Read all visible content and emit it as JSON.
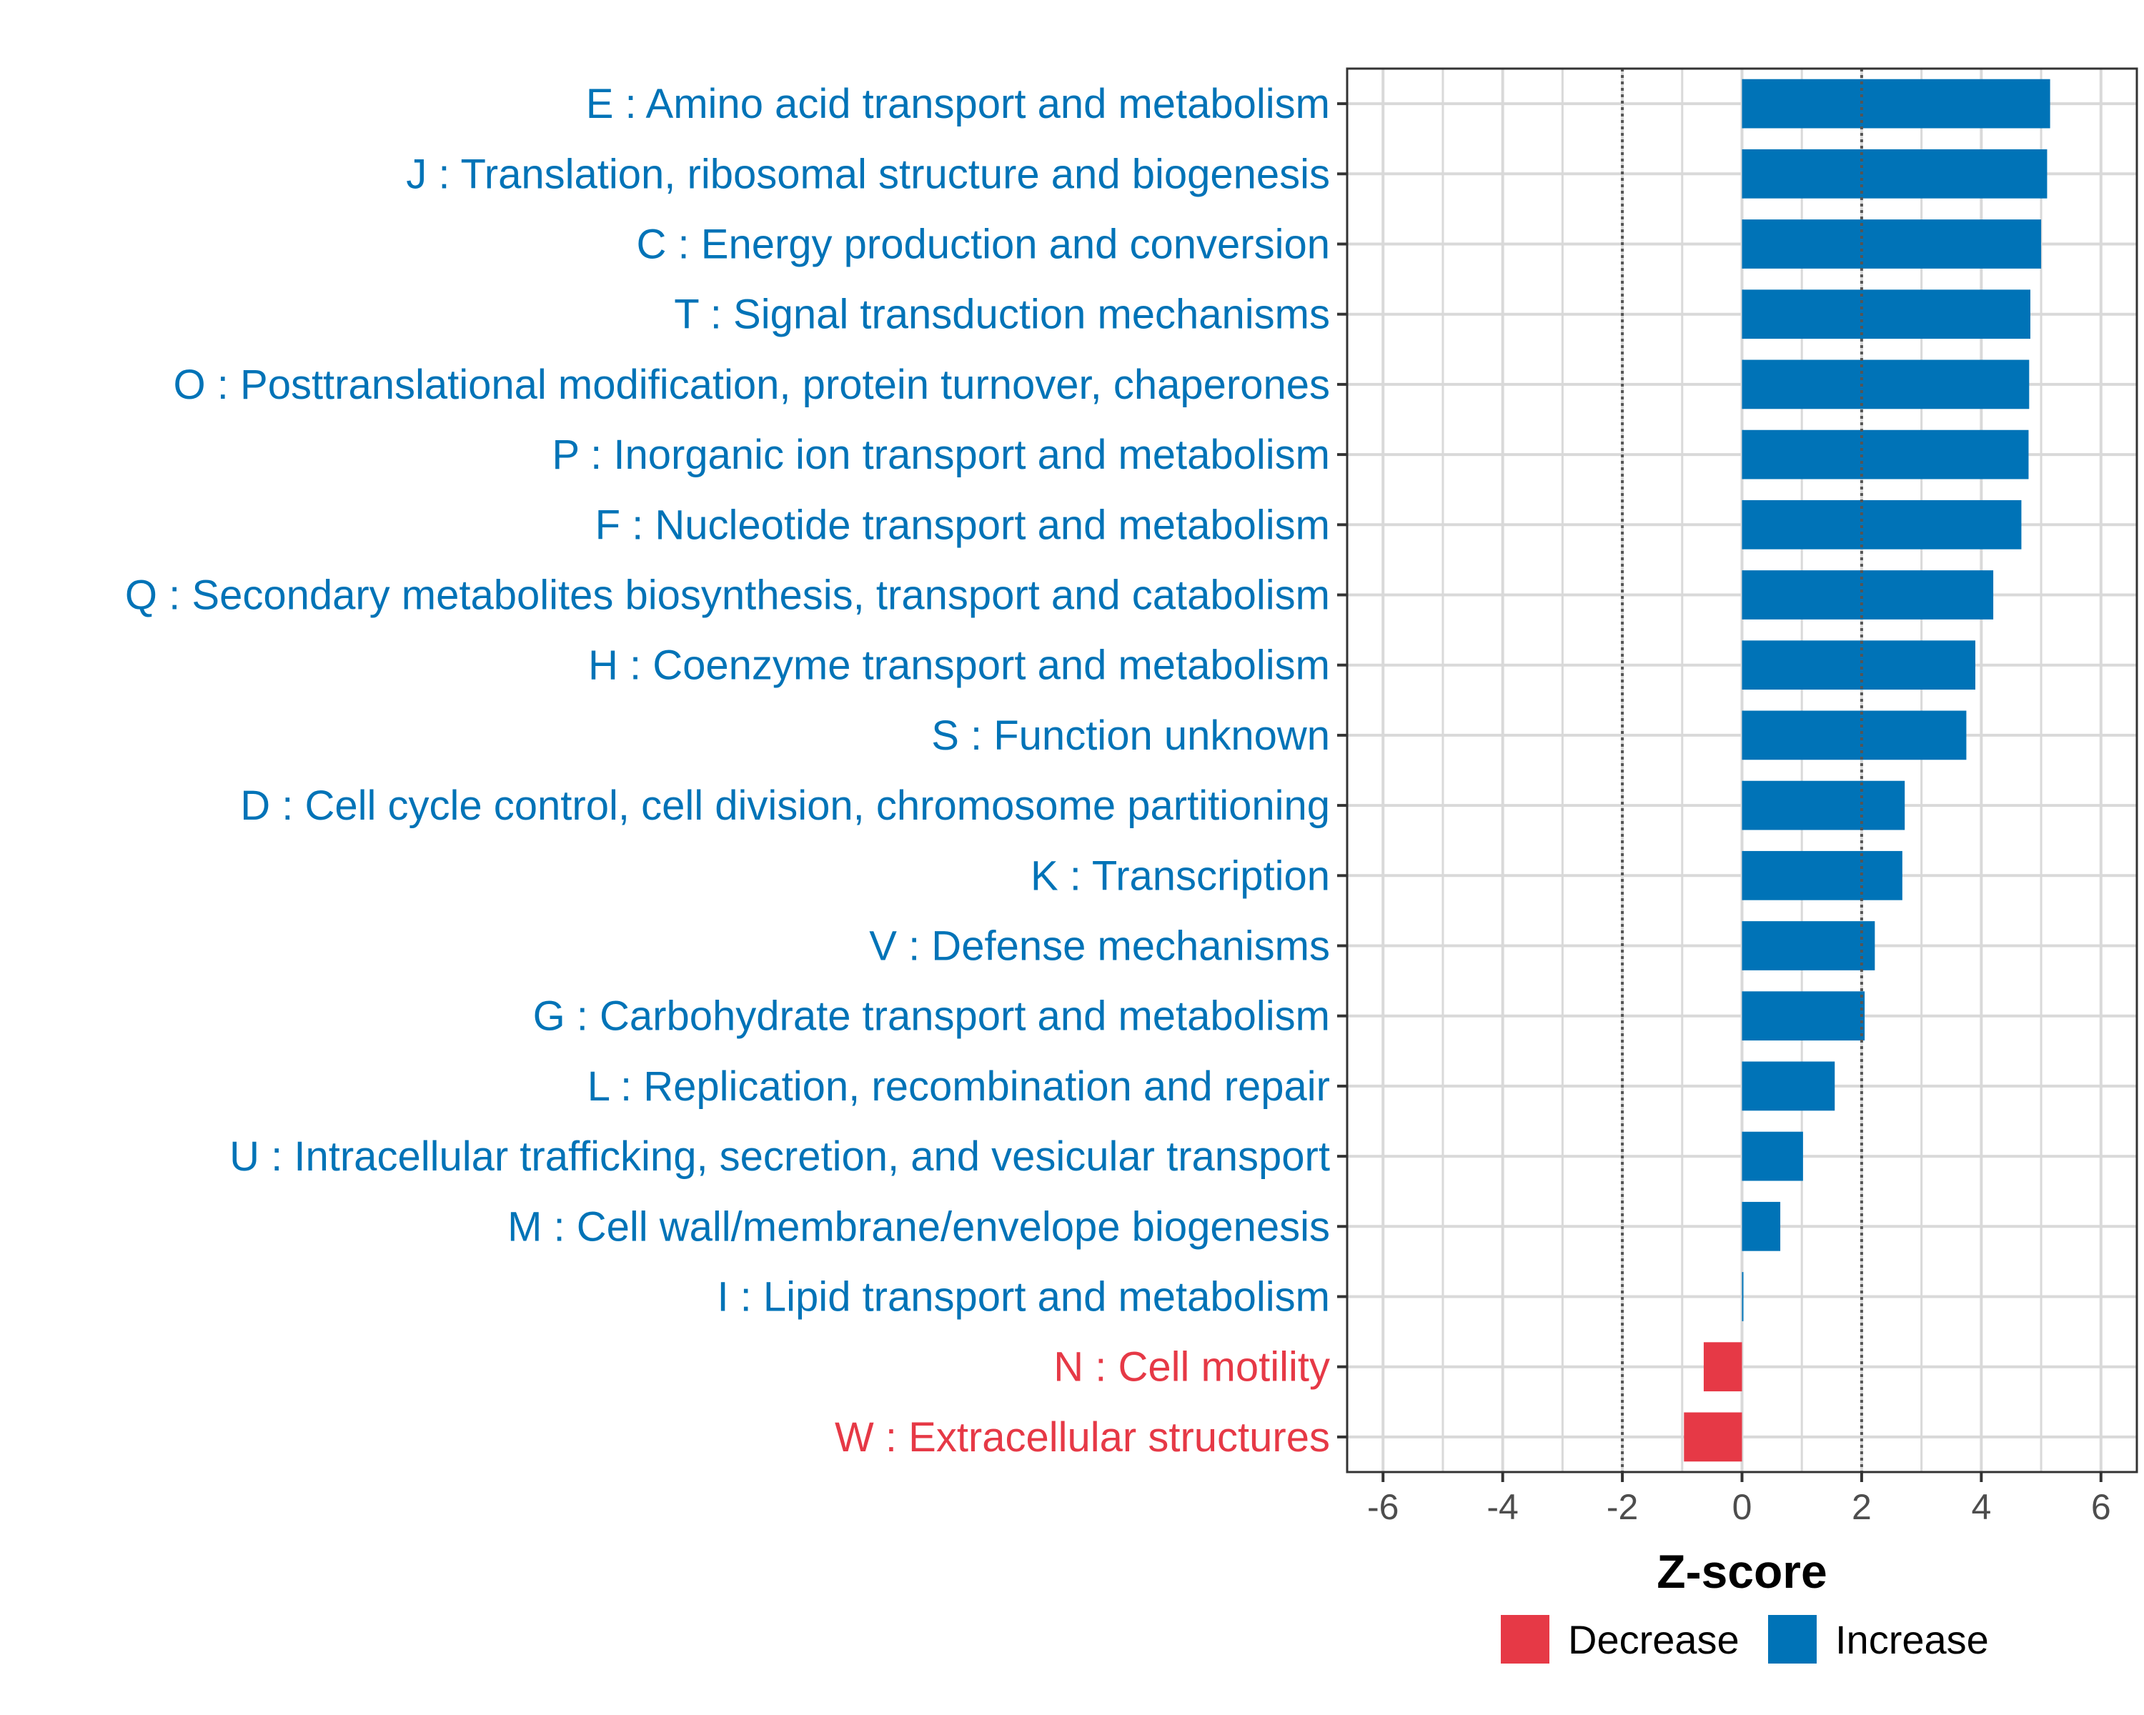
{
  "chart_data": {
    "type": "bar",
    "orientation": "horizontal",
    "title": "",
    "xlabel": "Z-score",
    "ylabel": "",
    "xlim": [
      -6.6,
      6.6
    ],
    "xticks": [
      -6,
      -4,
      -2,
      0,
      2,
      4,
      6
    ],
    "xtick_labels": [
      "-6",
      "-4",
      "-2",
      "0",
      "2",
      "4",
      "6"
    ],
    "reference_lines": [
      -2,
      2
    ],
    "grid": true,
    "categories": [
      "E : Amino acid transport and metabolism",
      "J : Translation, ribosomal structure and biogenesis",
      "C : Energy production and conversion",
      "T : Signal transduction mechanisms",
      "O : Posttranslational modification, protein turnover, chaperones",
      "P : Inorganic ion transport and metabolism",
      "F : Nucleotide transport and metabolism",
      "Q : Secondary metabolites biosynthesis, transport and catabolism",
      "H : Coenzyme transport and metabolism",
      "S : Function unknown",
      "D : Cell cycle control, cell division, chromosome partitioning",
      "K : Transcription",
      "V : Defense mechanisms",
      "G : Carbohydrate transport and metabolism",
      "L : Replication, recombination and repair",
      "U : Intracellular trafficking, secretion, and vesicular transport",
      "M : Cell wall/membrane/envelope biogenesis",
      "I : Lipid transport and metabolism",
      "N : Cell motility",
      "W : Extracellular structures"
    ],
    "values": [
      5.15,
      5.1,
      5.0,
      4.82,
      4.8,
      4.79,
      4.67,
      4.2,
      3.9,
      3.75,
      2.72,
      2.68,
      2.22,
      2.05,
      1.55,
      1.02,
      0.64,
      0.02,
      -0.64,
      -0.97
    ],
    "groups": [
      "Increase",
      "Increase",
      "Increase",
      "Increase",
      "Increase",
      "Increase",
      "Increase",
      "Increase",
      "Increase",
      "Increase",
      "Increase",
      "Increase",
      "Increase",
      "Increase",
      "Increase",
      "Increase",
      "Increase",
      "Increase",
      "Decrease",
      "Decrease"
    ],
    "legend": {
      "position": "bottom",
      "entries": [
        {
          "label": "Decrease",
          "color": "#E63946"
        },
        {
          "label": "Increase",
          "color": "#0073B7"
        }
      ]
    },
    "colors": {
      "Increase": "#0073B7",
      "Decrease": "#E63946",
      "grid": "#D9D9D9",
      "reference_line": "#555555"
    }
  }
}
